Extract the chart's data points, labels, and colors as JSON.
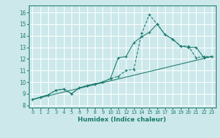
{
  "xlabel": "Humidex (Indice chaleur)",
  "bg_color": "#cce8ea",
  "grid_color": "#ffffff",
  "line_color": "#1a7a6e",
  "xlim": [
    -0.5,
    23.5
  ],
  "ylim": [
    7.8,
    16.6
  ],
  "xticks": [
    0,
    1,
    2,
    3,
    4,
    5,
    6,
    7,
    8,
    9,
    10,
    11,
    12,
    13,
    14,
    15,
    16,
    17,
    18,
    19,
    20,
    21,
    22,
    23
  ],
  "yticks": [
    8,
    9,
    10,
    11,
    12,
    13,
    14,
    15,
    16
  ],
  "series1_x": [
    0,
    1,
    2,
    3,
    4,
    5,
    6,
    7,
    8,
    9,
    10,
    11,
    12,
    13,
    14,
    15,
    16,
    17,
    18,
    19,
    20,
    21,
    22,
    23
  ],
  "series1_y": [
    8.5,
    8.7,
    8.9,
    9.3,
    9.4,
    9.0,
    9.5,
    9.7,
    9.85,
    10.0,
    10.3,
    10.5,
    11.0,
    11.1,
    14.2,
    15.8,
    15.0,
    14.1,
    13.7,
    13.1,
    13.1,
    12.1,
    12.2,
    12.2
  ],
  "series2_x": [
    0,
    1,
    2,
    3,
    4,
    5,
    6,
    7,
    8,
    9,
    10,
    11,
    12,
    13,
    14,
    15,
    16,
    17,
    18,
    19,
    20,
    21,
    22,
    23
  ],
  "series2_y": [
    8.5,
    8.7,
    8.9,
    9.3,
    9.4,
    9.0,
    9.5,
    9.7,
    9.85,
    10.0,
    10.3,
    12.1,
    12.2,
    13.4,
    13.9,
    14.3,
    15.0,
    14.1,
    13.7,
    13.1,
    13.0,
    13.0,
    12.1,
    12.2
  ],
  "series3_x": [
    0,
    23
  ],
  "series3_y": [
    8.5,
    12.2
  ]
}
